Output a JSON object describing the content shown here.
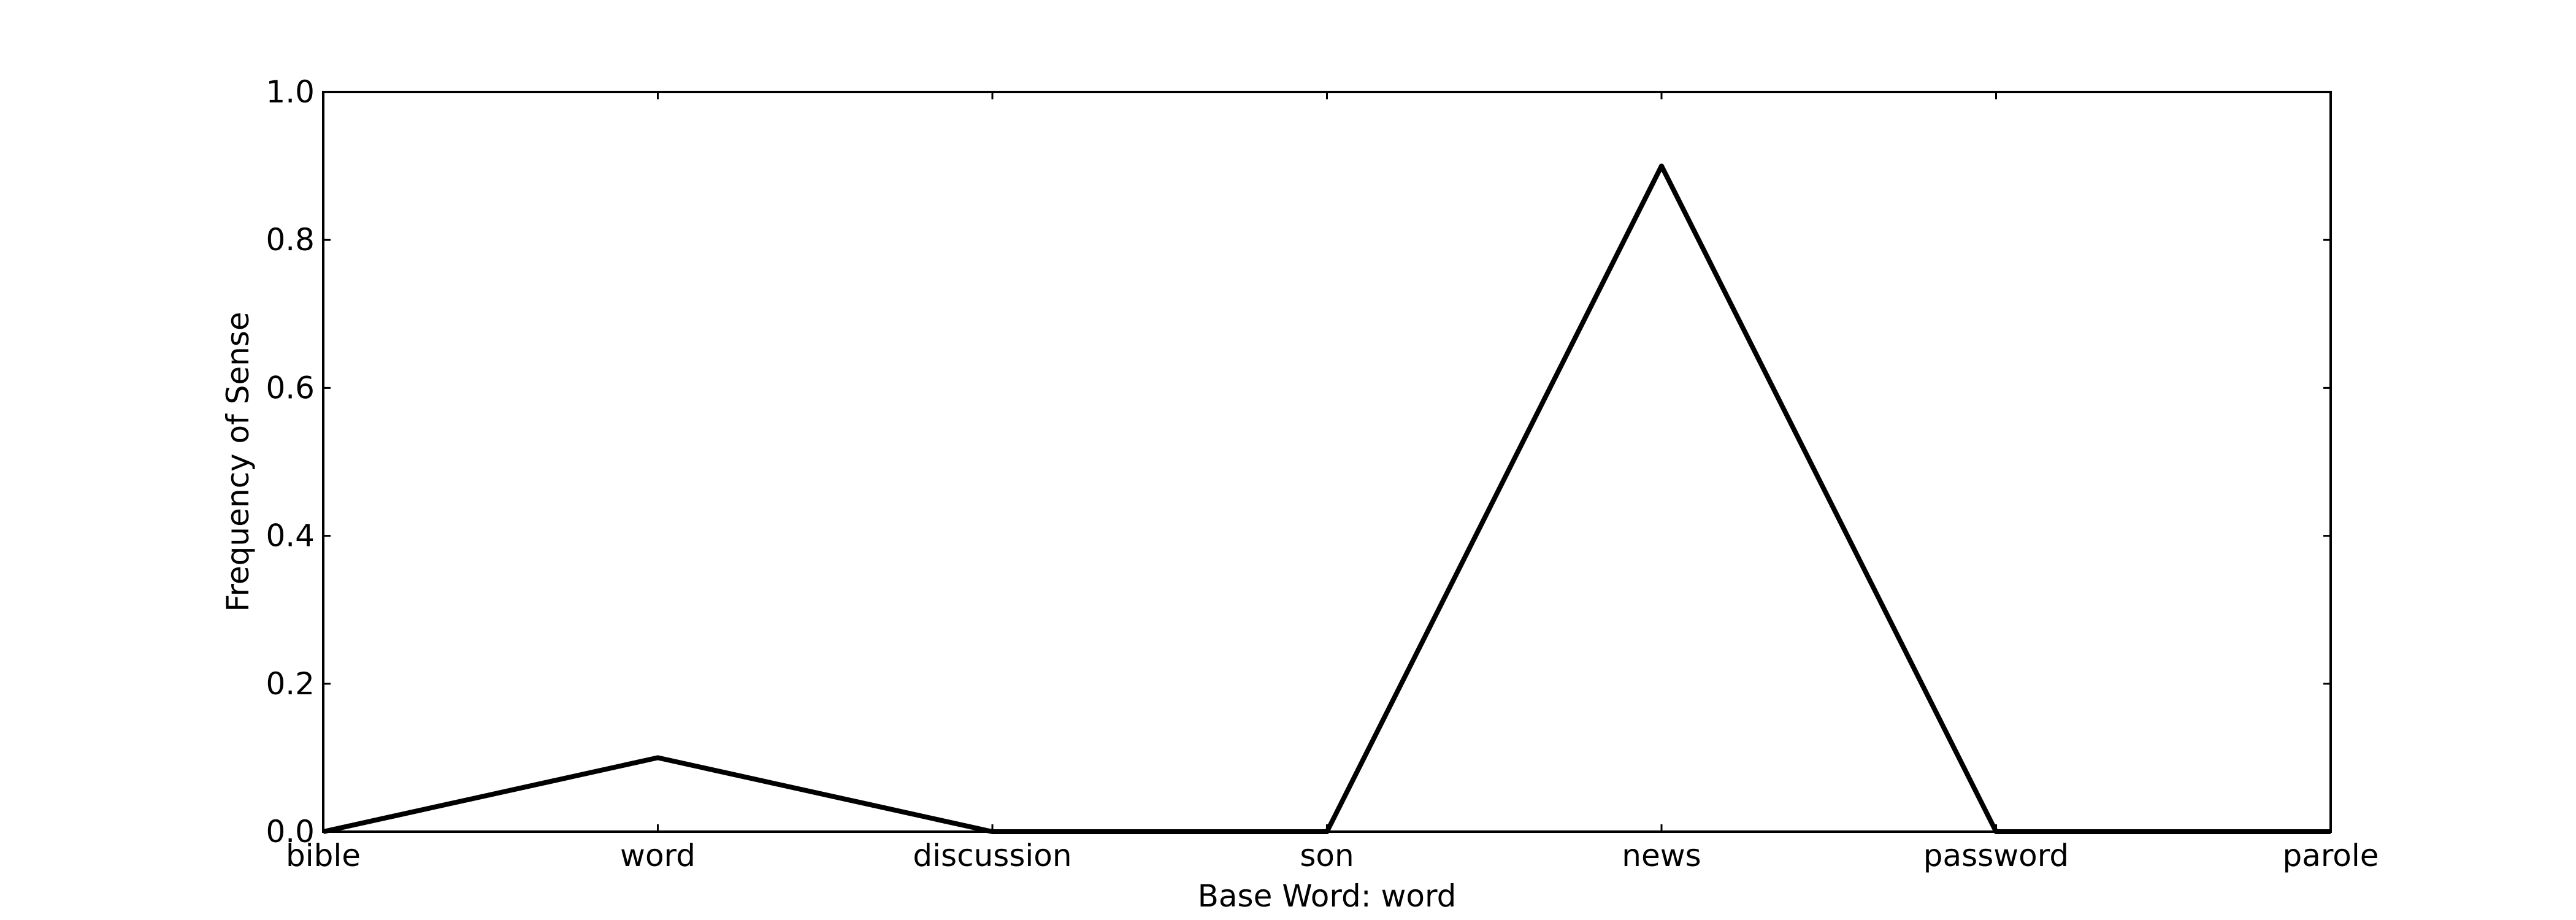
{
  "chart_data": {
    "type": "line",
    "title": "",
    "xlabel": "Base Word: word",
    "ylabel": "Frequency of Sense",
    "categories": [
      "bible",
      "word",
      "discussion",
      "son",
      "news",
      "password",
      "parole"
    ],
    "series": [
      {
        "values": [
          0.0,
          0.1,
          0.0,
          0.0,
          0.9,
          0.0,
          0.0
        ]
      }
    ],
    "ylim": [
      0.0,
      1.0
    ],
    "yticks": [
      "0.0",
      "0.2",
      "0.4",
      "0.6",
      "0.8",
      "1.0"
    ],
    "grid": false,
    "line_color": "#000000"
  }
}
